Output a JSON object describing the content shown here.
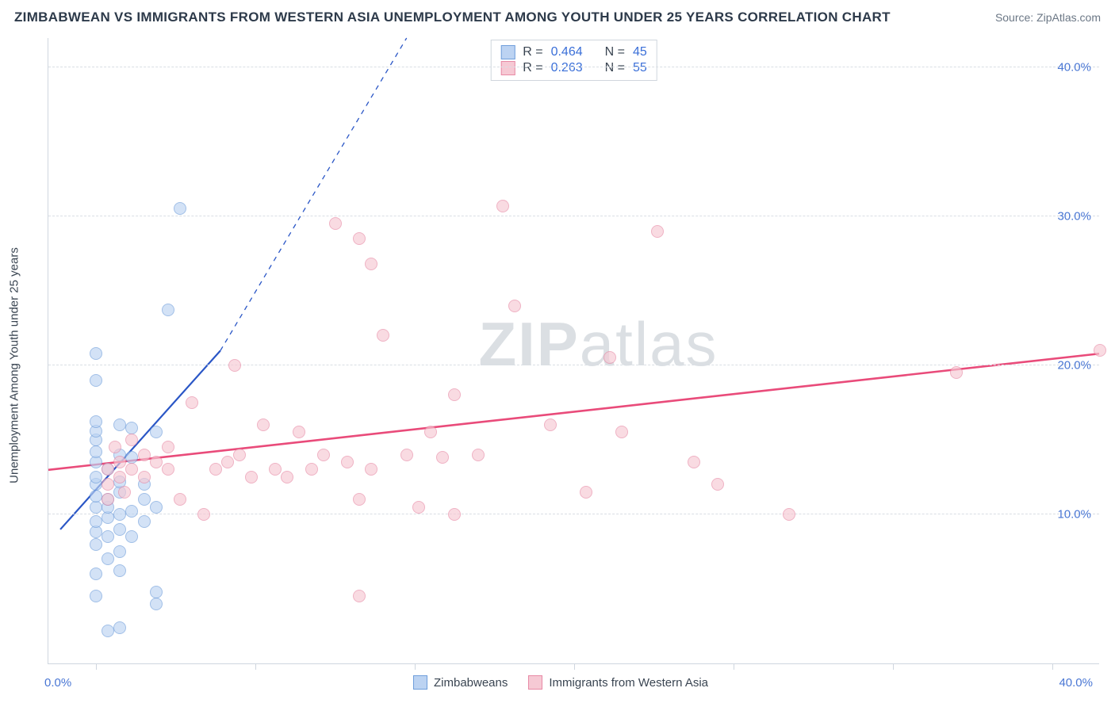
{
  "title": "ZIMBABWEAN VS IMMIGRANTS FROM WESTERN ASIA UNEMPLOYMENT AMONG YOUTH UNDER 25 YEARS CORRELATION CHART",
  "source": "Source: ZipAtlas.com",
  "ylabel": "Unemployment Among Youth under 25 years",
  "watermark": {
    "bold": "ZIP",
    "thin": "atlas"
  },
  "chart": {
    "type": "scatter",
    "xlim": [
      -2,
      42
    ],
    "ylim": [
      0,
      42
    ],
    "background_color": "#ffffff",
    "grid_color": "#d9dee4",
    "axis_color": "#cfd6df",
    "ytick_values": [
      10,
      20,
      30,
      40
    ],
    "ytick_labels": [
      "10.0%",
      "20.0%",
      "30.0%",
      "40.0%"
    ],
    "xtick_values": [
      0,
      6.67,
      13.33,
      20,
      26.67,
      33.33,
      40
    ],
    "xmin_label": "0.0%",
    "xmax_label": "40.0%",
    "ytick_label_color": "#4a77d4",
    "label_fontsize": 15,
    "point_radius": 8,
    "series": [
      {
        "name": "Zimbabweans",
        "fill": "#bcd3f2",
        "stroke": "#6f9edb",
        "fill_opacity": 0.65,
        "trend": {
          "color": "#2a56c6",
          "x1": -1.5,
          "y1": 9.0,
          "x2": 5.2,
          "y2": 21.0,
          "dash_x2": 13.0,
          "dash_y2": 42.0,
          "width": 2.2
        },
        "stats": {
          "R": "0.464",
          "N": "45"
        },
        "points": [
          [
            0,
            4.5
          ],
          [
            0,
            6.0
          ],
          [
            0,
            8.0
          ],
          [
            0,
            8.8
          ],
          [
            0,
            9.5
          ],
          [
            0,
            10.5
          ],
          [
            0,
            11.2
          ],
          [
            0,
            12.0
          ],
          [
            0,
            12.5
          ],
          [
            0,
            13.5
          ],
          [
            0,
            14.2
          ],
          [
            0,
            15.0
          ],
          [
            0,
            15.6
          ],
          [
            0,
            16.2
          ],
          [
            0,
            19.0
          ],
          [
            0,
            20.8
          ],
          [
            0.5,
            2.2
          ],
          [
            0.5,
            7.0
          ],
          [
            0.5,
            8.5
          ],
          [
            0.5,
            9.8
          ],
          [
            0.5,
            10.5
          ],
          [
            0.5,
            11.0
          ],
          [
            0.5,
            13.0
          ],
          [
            1.0,
            2.4
          ],
          [
            1.0,
            6.2
          ],
          [
            1.0,
            7.5
          ],
          [
            1.0,
            9.0
          ],
          [
            1.0,
            10.0
          ],
          [
            1.0,
            11.5
          ],
          [
            1.0,
            12.2
          ],
          [
            1.0,
            14.0
          ],
          [
            1.0,
            16.0
          ],
          [
            1.5,
            8.5
          ],
          [
            1.5,
            10.2
          ],
          [
            1.5,
            13.8
          ],
          [
            1.5,
            15.8
          ],
          [
            2.0,
            9.5
          ],
          [
            2.0,
            11.0
          ],
          [
            2.0,
            12.0
          ],
          [
            2.5,
            4.0
          ],
          [
            2.5,
            4.8
          ],
          [
            2.5,
            10.5
          ],
          [
            2.5,
            15.5
          ],
          [
            3.0,
            23.7
          ],
          [
            3.5,
            30.5
          ]
        ]
      },
      {
        "name": "Immigrants from Western Asia",
        "fill": "#f6c9d4",
        "stroke": "#e88aa5",
        "fill_opacity": 0.65,
        "trend": {
          "color": "#e94b7a",
          "x1": -2,
          "y1": 13.0,
          "x2": 42,
          "y2": 20.8,
          "width": 2.6
        },
        "stats": {
          "R": "0.263",
          "N": "55"
        },
        "points": [
          [
            0.5,
            11.0
          ],
          [
            0.5,
            12.0
          ],
          [
            0.5,
            13.0
          ],
          [
            0.8,
            14.5
          ],
          [
            1.0,
            12.5
          ],
          [
            1.0,
            13.5
          ],
          [
            1.2,
            11.5
          ],
          [
            1.5,
            13.0
          ],
          [
            1.5,
            15.0
          ],
          [
            2.0,
            12.5
          ],
          [
            2.0,
            14.0
          ],
          [
            2.5,
            13.5
          ],
          [
            3.0,
            13.0
          ],
          [
            3.0,
            14.5
          ],
          [
            3.5,
            11.0
          ],
          [
            4.0,
            17.5
          ],
          [
            4.5,
            10.0
          ],
          [
            5.0,
            13.0
          ],
          [
            5.5,
            13.5
          ],
          [
            5.8,
            20.0
          ],
          [
            6.0,
            14.0
          ],
          [
            6.5,
            12.5
          ],
          [
            7.0,
            16.0
          ],
          [
            7.5,
            13.0
          ],
          [
            8.0,
            12.5
          ],
          [
            8.5,
            15.5
          ],
          [
            9.0,
            13.0
          ],
          [
            9.5,
            14.0
          ],
          [
            10.0,
            29.5
          ],
          [
            10.5,
            13.5
          ],
          [
            11.0,
            4.5
          ],
          [
            11.0,
            11.0
          ],
          [
            11.0,
            28.5
          ],
          [
            11.5,
            26.8
          ],
          [
            11.5,
            13.0
          ],
          [
            12.0,
            22.0
          ],
          [
            13.0,
            14.0
          ],
          [
            13.5,
            10.5
          ],
          [
            14.0,
            15.5
          ],
          [
            14.5,
            13.8
          ],
          [
            15.0,
            10.0
          ],
          [
            15.0,
            18.0
          ],
          [
            16.0,
            14.0
          ],
          [
            17.0,
            30.7
          ],
          [
            17.5,
            24.0
          ],
          [
            19.0,
            16.0
          ],
          [
            20.5,
            11.5
          ],
          [
            21.5,
            20.5
          ],
          [
            22.0,
            15.5
          ],
          [
            23.5,
            29.0
          ],
          [
            25.0,
            13.5
          ],
          [
            26.0,
            12.0
          ],
          [
            29.0,
            10.0
          ],
          [
            36.0,
            19.5
          ],
          [
            42.0,
            21.0
          ]
        ]
      }
    ]
  },
  "legend_top_labels": {
    "R": "R =",
    "N": "N ="
  },
  "legend_bottom": [
    {
      "label": "Zimbabweans",
      "fill": "#bcd3f2",
      "stroke": "#6f9edb"
    },
    {
      "label": "Immigrants from Western Asia",
      "fill": "#f6c9d4",
      "stroke": "#e88aa5"
    }
  ]
}
